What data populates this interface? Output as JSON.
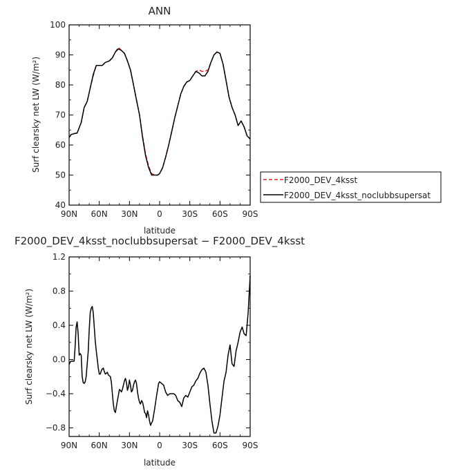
{
  "chart_data": [
    {
      "type": "line",
      "title": "ANN",
      "xlabel": "latitude",
      "ylabel": "Surf clearsky net LW (W/m²)",
      "xlim": [
        90,
        -90
      ],
      "ylim": [
        40,
        100
      ],
      "x_tick_values": [
        90,
        60,
        30,
        0,
        -30,
        -60,
        -90
      ],
      "x_tick_labels": [
        "90N",
        "60N",
        "30N",
        "0",
        "30S",
        "60S",
        "90S"
      ],
      "y_ticks": [
        40,
        50,
        60,
        70,
        80,
        90,
        100
      ],
      "legend_position": "right",
      "series": [
        {
          "name": "F2000_DEV_4ksst",
          "color": "#e02020",
          "dash": "dashed",
          "x": [
            90,
            88,
            85,
            82,
            78,
            75,
            72,
            69,
            66,
            63,
            60,
            57,
            54,
            50,
            47,
            44,
            41,
            38,
            35,
            32,
            29,
            26,
            23,
            20,
            17,
            14,
            11,
            8,
            5,
            2,
            0,
            -3,
            -6,
            -9,
            -12,
            -15,
            -18,
            -21,
            -24,
            -27,
            -30,
            -33,
            -36,
            -39,
            -42,
            -45,
            -48,
            -51,
            -54,
            -57,
            -60,
            -63,
            -66,
            -69,
            -72,
            -75,
            -78,
            -81,
            -84,
            -87,
            -90
          ],
          "y": [
            62.5,
            63.5,
            63.8,
            64.0,
            67.5,
            72.5,
            74.5,
            79.0,
            83.0,
            86.5,
            86.5,
            86.5,
            87.5,
            88.0,
            89.0,
            91.0,
            92.5,
            91.5,
            90.5,
            88.0,
            85.0,
            80.0,
            75.0,
            70.0,
            63.0,
            57.0,
            53.0,
            50.5,
            50.0,
            50.0,
            50.5,
            52.5,
            56.0,
            60.0,
            64.5,
            69.0,
            73.0,
            77.0,
            79.5,
            81.0,
            81.5,
            83.0,
            84.5,
            85.0,
            84.5,
            84.5,
            85.0,
            87.5,
            90.0,
            91.0,
            90.5,
            87.0,
            81.5,
            76.0,
            72.5,
            70.0,
            66.5,
            68.0,
            66.0,
            63.0,
            62.0
          ]
        },
        {
          "name": "F2000_DEV_4ksst_noclubbsupersat",
          "color": "#000000",
          "dash": "solid",
          "x": [
            90,
            88,
            85,
            82,
            78,
            75,
            72,
            69,
            66,
            63,
            60,
            57,
            54,
            50,
            47,
            44,
            41,
            38,
            35,
            32,
            29,
            26,
            23,
            20,
            17,
            14,
            11,
            8,
            5,
            2,
            0,
            -3,
            -6,
            -9,
            -12,
            -15,
            -18,
            -21,
            -24,
            -27,
            -30,
            -33,
            -36,
            -39,
            -42,
            -45,
            -48,
            -51,
            -54,
            -57,
            -60,
            -63,
            -66,
            -69,
            -72,
            -75,
            -78,
            -81,
            -84,
            -87,
            -90
          ],
          "y": [
            62.5,
            63.5,
            63.8,
            64.0,
            67.5,
            72.5,
            74.5,
            79.0,
            83.5,
            86.5,
            86.5,
            86.5,
            87.5,
            88.0,
            89.0,
            91.0,
            92.0,
            91.5,
            90.5,
            88.0,
            85.0,
            80.0,
            75.0,
            70.0,
            62.5,
            56.5,
            52.5,
            50.0,
            50.0,
            50.0,
            50.5,
            52.5,
            56.0,
            60.0,
            64.5,
            69.0,
            73.0,
            77.0,
            79.5,
            81.0,
            81.5,
            83.0,
            84.5,
            84.0,
            83.0,
            83.0,
            84.5,
            87.5,
            90.0,
            91.0,
            90.5,
            87.0,
            81.5,
            76.0,
            72.5,
            70.0,
            66.5,
            68.0,
            66.0,
            63.0,
            62.0
          ]
        }
      ]
    },
    {
      "type": "line",
      "title": "F2000_DEV_4ksst_noclubbsupersat − F2000_DEV_4ksst",
      "xlabel": "latitude",
      "ylabel": "Surf clearsky net LW (W/m²)",
      "xlim": [
        90,
        -90
      ],
      "ylim": [
        -0.9,
        1.2
      ],
      "x_tick_values": [
        90,
        60,
        30,
        0,
        -30,
        -60,
        -90
      ],
      "x_tick_labels": [
        "90N",
        "60N",
        "30N",
        "0",
        "30S",
        "60S",
        "90S"
      ],
      "y_ticks": [
        -0.8,
        -0.4,
        0.0,
        0.4,
        0.8,
        1.2
      ],
      "y_tick_labels": [
        "−0.8",
        "−0.4",
        "0.0",
        "0.4",
        "0.8",
        "1.2"
      ],
      "series": [
        {
          "name": "",
          "color": "#000000",
          "dash": "solid",
          "x": [
            90,
            89,
            88,
            87,
            85,
            84,
            83,
            82,
            81,
            80,
            79,
            78,
            77,
            76,
            75,
            74,
            73,
            72,
            71,
            70,
            69,
            68,
            67,
            66,
            65,
            64,
            63,
            62,
            61,
            60,
            59,
            58,
            57,
            56,
            55,
            54,
            53,
            52,
            51,
            50,
            49,
            48,
            47,
            46,
            45,
            44,
            43,
            42,
            41,
            40,
            39,
            38,
            37,
            36,
            35,
            34,
            33,
            32,
            31,
            30,
            29,
            28,
            27,
            26,
            25,
            24,
            23,
            22,
            21,
            20,
            19,
            18,
            17,
            16,
            15,
            14,
            13,
            12,
            11,
            10,
            9,
            8,
            7,
            6,
            5,
            4,
            3,
            2,
            1,
            0,
            -2,
            -4,
            -6,
            -8,
            -10,
            -12,
            -14,
            -16,
            -18,
            -20,
            -22,
            -24,
            -26,
            -28,
            -30,
            -32,
            -34,
            -36,
            -38,
            -40,
            -42,
            -44,
            -46,
            -48,
            -50,
            -52,
            -54,
            -56,
            -58,
            -60,
            -62,
            -64,
            -66,
            -68,
            -70,
            -72,
            -74,
            -76,
            -78,
            -80,
            -82,
            -84,
            -86,
            -88,
            -90
          ],
          "y": [
            -0.06,
            -0.03,
            -0.02,
            -0.02,
            -0.02,
            0.15,
            0.38,
            0.44,
            0.3,
            0.05,
            0.07,
            0.05,
            -0.2,
            -0.27,
            -0.28,
            -0.26,
            -0.2,
            -0.05,
            0.1,
            0.35,
            0.55,
            0.6,
            0.62,
            0.55,
            0.38,
            0.22,
            0.1,
            0.0,
            -0.1,
            -0.17,
            -0.17,
            -0.13,
            -0.11,
            -0.1,
            -0.14,
            -0.17,
            -0.16,
            -0.15,
            -0.18,
            -0.19,
            -0.2,
            -0.26,
            -0.4,
            -0.52,
            -0.6,
            -0.62,
            -0.55,
            -0.48,
            -0.42,
            -0.35,
            -0.36,
            -0.38,
            -0.35,
            -0.3,
            -0.25,
            -0.22,
            -0.27,
            -0.36,
            -0.32,
            -0.24,
            -0.3,
            -0.38,
            -0.36,
            -0.3,
            -0.26,
            -0.24,
            -0.28,
            -0.38,
            -0.45,
            -0.5,
            -0.52,
            -0.48,
            -0.5,
            -0.55,
            -0.62,
            -0.63,
            -0.68,
            -0.6,
            -0.65,
            -0.72,
            -0.77,
            -0.74,
            -0.72,
            -0.65,
            -0.58,
            -0.5,
            -0.42,
            -0.35,
            -0.28,
            -0.26,
            -0.28,
            -0.3,
            -0.38,
            -0.42,
            -0.4,
            -0.4,
            -0.4,
            -0.42,
            -0.48,
            -0.5,
            -0.55,
            -0.45,
            -0.42,
            -0.44,
            -0.38,
            -0.32,
            -0.3,
            -0.25,
            -0.22,
            -0.16,
            -0.12,
            -0.1,
            -0.15,
            -0.3,
            -0.52,
            -0.72,
            -0.86,
            -0.86,
            -0.78,
            -0.65,
            -0.45,
            -0.25,
            -0.15,
            0.05,
            0.17,
            -0.05,
            -0.08,
            0.1,
            0.2,
            0.32,
            0.38,
            0.3,
            0.28,
            0.55,
            0.98
          ]
        }
      ]
    }
  ]
}
